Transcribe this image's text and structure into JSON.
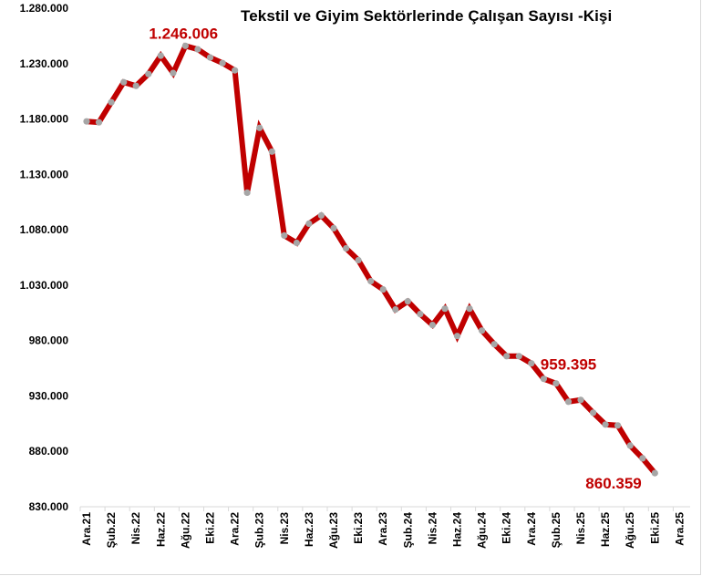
{
  "chart_data": {
    "type": "line",
    "title": "Tekstil ve Giyim Sektörlerinde  Çalışan Sayısı -Kişi",
    "xlabel": "",
    "ylabel": "",
    "ylim": [
      830000,
      1280000
    ],
    "y_ticks": [
      "1.280.000",
      "1.230.000",
      "1.180.000",
      "1.130.000",
      "1.080.000",
      "1.030.000",
      "980.000",
      "930.000",
      "880.000",
      "830.000"
    ],
    "y_tick_values": [
      1280000,
      1230000,
      1180000,
      1130000,
      1080000,
      1030000,
      980000,
      930000,
      880000,
      830000
    ],
    "x_tick_labels": [
      "Ara.21",
      "Şub.22",
      "Nis.22",
      "Haz.22",
      "Ağu.22",
      "Eki.22",
      "Ara.22",
      "Şub.23",
      "Nis.23",
      "Haz.23",
      "Ağu.23",
      "Eki.23",
      "Ara.23",
      "Şub.24",
      "Nis.24",
      "Haz.24",
      "Ağu.24",
      "Eki.24",
      "Ara.24",
      "Şub.25",
      "Nis.25",
      "Haz.25",
      "Ağu.25",
      "Eki.25",
      "Ara.25"
    ],
    "grid": false,
    "legend": null,
    "line_color": "#c00000",
    "marker_color": "#a6a6a6",
    "categories": [
      "Ara.21",
      "Oca.22",
      "Şub.22",
      "Mar.22",
      "Nis.22",
      "May.22",
      "Haz.22",
      "Tem.22",
      "Ağu.22",
      "Eyl.22",
      "Eki.22",
      "Kas.22",
      "Ara.22",
      "Oca.23",
      "Şub.23",
      "Mar.23",
      "Nis.23",
      "May.23",
      "Haz.23",
      "Tem.23",
      "Ağu.23",
      "Eyl.23",
      "Eki.23",
      "Kas.23",
      "Ara.23",
      "Oca.24",
      "Şub.24",
      "Mar.24",
      "Nis.24",
      "May.24",
      "Haz.24",
      "Tem.24",
      "Ağu.24",
      "Eyl.24",
      "Eki.24",
      "Kas.24",
      "Ara.24",
      "Oca.25",
      "Şub.25",
      "Mar.25",
      "Nis.25",
      "May.25",
      "Haz.25",
      "Tem.25",
      "Ağu.25",
      "Eyl.25",
      "Eki.25"
    ],
    "series": [
      {
        "name": "Çalışan Sayısı",
        "values": [
          1177800,
          1177000,
          1195100,
          1213200,
          1209900,
          1220600,
          1237100,
          1221500,
          1246006,
          1242900,
          1235500,
          1230500,
          1223900,
          1113500,
          1172000,
          1150600,
          1074800,
          1068200,
          1085500,
          1092900,
          1081400,
          1063200,
          1052500,
          1033600,
          1026100,
          1008000,
          1015400,
          1003900,
          994000,
          1008800,
          984100,
          1008800,
          989000,
          976700,
          965900,
          965900,
          959395,
          945400,
          941300,
          924800,
          926400,
          914900,
          904200,
          903400,
          885200,
          873700,
          860359
        ]
      }
    ],
    "annotations": [
      {
        "label": "1.246.006",
        "category": "Ağu.22",
        "value": 1246006
      },
      {
        "label": "959.395",
        "category": "Ara.24",
        "value": 959395
      },
      {
        "label": "860.359",
        "category": "Eki.25",
        "value": 860359
      }
    ]
  }
}
